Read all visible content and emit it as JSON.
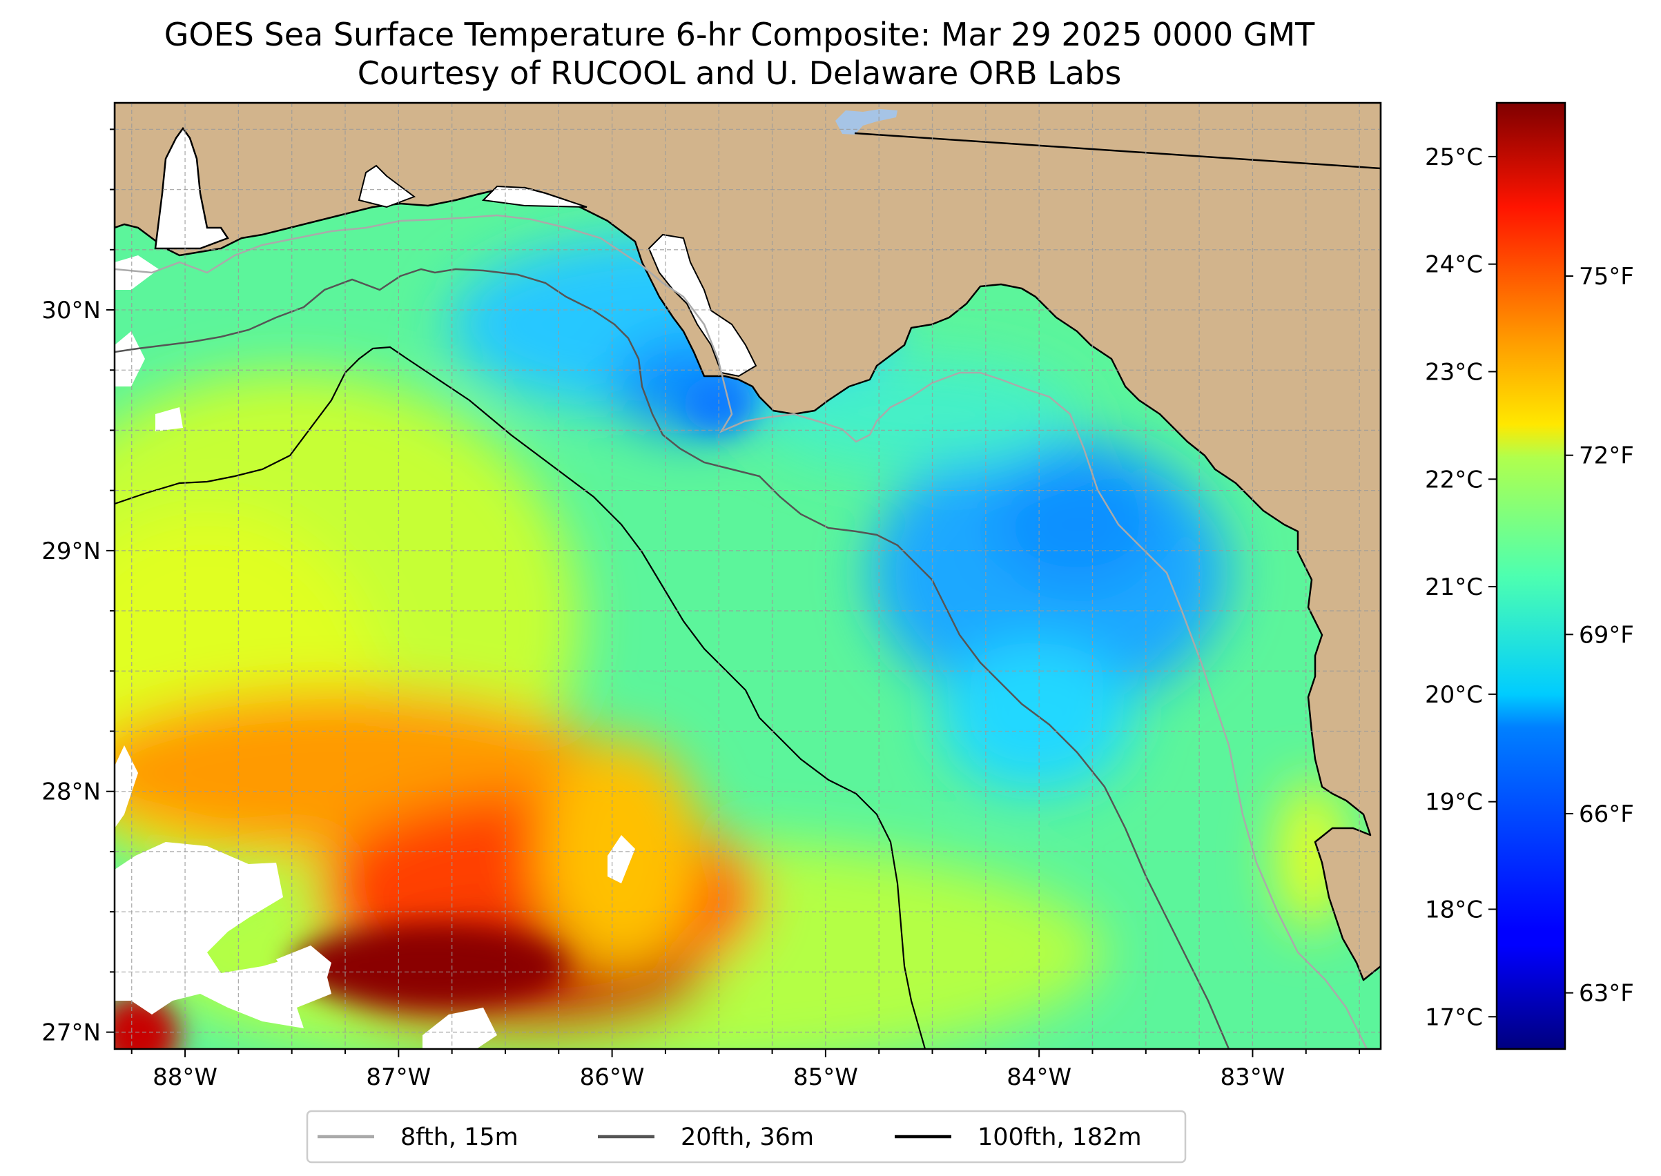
{
  "title": {
    "line1": "GOES Sea Surface Temperature 6-hr Composite: Mar 29 2025 0000 GMT",
    "line2": "Courtesy of RUCOOL and U. Delaware ORB Labs"
  },
  "map": {
    "lon_range": [
      -88.33,
      -82.4
    ],
    "lat_range": [
      26.93,
      30.86
    ],
    "lon_ticks": [
      {
        "value": -88,
        "label": "88°W"
      },
      {
        "value": -87,
        "label": "87°W"
      },
      {
        "value": -86,
        "label": "86°W"
      },
      {
        "value": -85,
        "label": "85°W"
      },
      {
        "value": -84,
        "label": "84°W"
      },
      {
        "value": -83,
        "label": "83°W"
      }
    ],
    "lat_ticks": [
      {
        "value": 30,
        "label": "30°N"
      },
      {
        "value": 29,
        "label": "29°N"
      },
      {
        "value": 28,
        "label": "28°N"
      },
      {
        "value": 27,
        "label": "27°N"
      }
    ],
    "colors": {
      "land": "#d2b48c",
      "coast": "#000000",
      "grid": "#9a9a9a",
      "lake": "#a6c4e6"
    }
  },
  "colorbar": {
    "colormap": "jet",
    "range_c": [
      16.7,
      25.5
    ],
    "celsius_ticks": [
      {
        "value": 25,
        "label": "25°C"
      },
      {
        "value": 24,
        "label": "24°C"
      },
      {
        "value": 23,
        "label": "23°C"
      },
      {
        "value": 22,
        "label": "22°C"
      },
      {
        "value": 21,
        "label": "21°C"
      },
      {
        "value": 20,
        "label": "20°C"
      },
      {
        "value": 19,
        "label": "19°C"
      },
      {
        "value": 18,
        "label": "18°C"
      },
      {
        "value": 17,
        "label": "17°C"
      }
    ],
    "fahrenheit_ticks": [
      {
        "value": 75,
        "label": "75°F"
      },
      {
        "value": 72,
        "label": "72°F"
      },
      {
        "value": 69,
        "label": "69°F"
      },
      {
        "value": 66,
        "label": "66°F"
      },
      {
        "value": 63,
        "label": "63°F"
      }
    ]
  },
  "legend": {
    "items": [
      {
        "label": "8fth, 15m",
        "color": "#aaaaaa"
      },
      {
        "label": "20fth, 36m",
        "color": "#555555"
      },
      {
        "label": "100fth, 182m",
        "color": "#000000"
      }
    ]
  }
}
